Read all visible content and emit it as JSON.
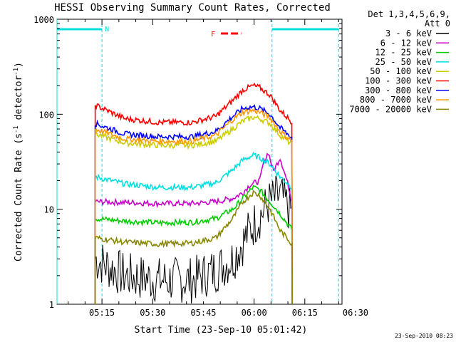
{
  "chart_data": {
    "type": "line",
    "title": "HESSI Observing Summary Count Rates, Corrected",
    "xlabel": "Start Time (23-Sep-10 05:01:42)",
    "ylabel_main": "Corrected Count Rate (s",
    "ylabel_sup1": "-1",
    "ylabel_mid": " detector",
    "ylabel_sup2": "-1",
    "ylabel_end": ")",
    "y_scale": "log",
    "ylim": [
      1,
      1000
    ],
    "xlim_minutes": [
      0,
      84.3
    ],
    "x_ticks": [
      {
        "label": "05:15",
        "m": 13.3
      },
      {
        "label": "05:30",
        "m": 28.3
      },
      {
        "label": "05:45",
        "m": 43.3
      },
      {
        "label": "06:00",
        "m": 58.3
      },
      {
        "label": "06:15",
        "m": 73.3
      },
      {
        "label": "06:30",
        "m": 88.3
      }
    ],
    "y_ticks": [
      {
        "label": "1",
        "v": 1
      },
      {
        "label": "10",
        "v": 10
      },
      {
        "label": "100",
        "v": 100
      },
      {
        "label": "1000",
        "v": 1000
      }
    ],
    "legend_title_1": "Det 1,3,4,5,6,9,",
    "legend_title_2": "Att 0",
    "legend_placement": "right",
    "annotations": {
      "night_label": "N",
      "flare_label": "F"
    },
    "footer_date": "23-Sep-2010 08:23",
    "data_start_m": 11.3,
    "data_end_m": 69.6,
    "series": [
      {
        "name": "3 - 6 keV",
        "color": "#000000",
        "m": [
          11.3,
          20,
          30,
          40,
          47,
          52,
          55,
          57,
          60,
          63,
          66,
          69.6
        ],
        "v": [
          3,
          2,
          1.8,
          1.8,
          2.3,
          3,
          4.5,
          6,
          8.5,
          12,
          14,
          9
        ]
      },
      {
        "name": "6 - 12 keV",
        "color": "#cc00cc",
        "m": [
          11.3,
          20,
          30,
          40,
          47,
          52,
          55,
          57,
          60,
          61,
          62.5,
          64,
          66,
          68,
          69.6
        ],
        "v": [
          12,
          11.8,
          11.5,
          11.5,
          12,
          13,
          15,
          18,
          20,
          30,
          40,
          25,
          35,
          20,
          12
        ]
      },
      {
        "name": "12 - 25 keV",
        "color": "#00cc00",
        "m": [
          11.3,
          20,
          30,
          40,
          47,
          52,
          55,
          58,
          60,
          63,
          66,
          69.6
        ],
        "v": [
          8,
          7.5,
          7.2,
          7.3,
          8,
          10,
          13,
          17,
          16,
          12,
          9,
          6
        ]
      },
      {
        "name": "25 - 50 keV",
        "color": "#00e0e0",
        "m": [
          11.3,
          20,
          30,
          40,
          47,
          52,
          55,
          58,
          60,
          63,
          66,
          69.6
        ],
        "v": [
          22,
          18.5,
          17,
          17,
          19,
          26,
          33,
          37,
          35,
          30,
          22,
          17
        ]
      },
      {
        "name": "50 - 100 keV",
        "color": "#cccc00",
        "m": [
          11.3,
          20,
          30,
          40,
          47,
          52,
          55,
          58,
          60,
          63,
          66,
          69.6
        ],
        "v": [
          62,
          50,
          47,
          47,
          52,
          70,
          85,
          93,
          90,
          80,
          60,
          48
        ]
      },
      {
        "name": "100 - 300 keV",
        "color": "#ff0000",
        "m": [
          11.3,
          20,
          30,
          40,
          47,
          52,
          55,
          58,
          60,
          63,
          66,
          69.6
        ],
        "v": [
          125,
          90,
          82,
          82,
          95,
          140,
          180,
          200,
          190,
          160,
          110,
          82
        ]
      },
      {
        "name": "300 - 800 keV",
        "color": "#0000ff",
        "m": [
          11.3,
          20,
          30,
          40,
          47,
          52,
          55,
          58,
          60,
          63,
          66,
          69.6
        ],
        "v": [
          80,
          62,
          58,
          58,
          66,
          95,
          115,
          120,
          115,
          100,
          72,
          56
        ]
      },
      {
        "name": "800 - 7000 keV",
        "color": "#ff9900",
        "m": [
          11.3,
          20,
          30,
          40,
          47,
          52,
          55,
          58,
          60,
          63,
          66,
          69.6
        ],
        "v": [
          70,
          55,
          52,
          52,
          60,
          88,
          105,
          110,
          105,
          92,
          66,
          52
        ]
      },
      {
        "name": "7000 - 20000 keV",
        "color": "#888800",
        "m": [
          11.3,
          20,
          30,
          40,
          47,
          52,
          55,
          58,
          60,
          63,
          66,
          69.6
        ],
        "v": [
          5,
          4.5,
          4.3,
          4.4,
          5,
          8,
          12,
          15,
          14,
          10,
          6,
          4.3
        ]
      }
    ],
    "night_bars": [
      {
        "m1": 0,
        "m2": 13.3
      },
      {
        "m1": 63.6,
        "m2": 83.3
      }
    ],
    "flare_bar": {
      "m1": 48.5,
      "m2": 54.5
    }
  }
}
